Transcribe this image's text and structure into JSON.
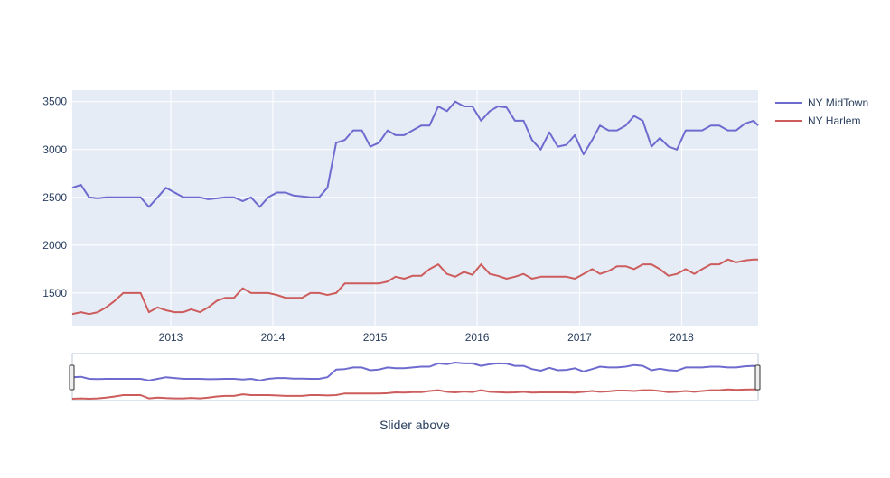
{
  "chart_data": {
    "type": "line",
    "x_axis": {
      "type": "date",
      "range": [
        "2012-01-15",
        "2018-10-01"
      ],
      "tick_labels": [
        "2013",
        "2014",
        "2015",
        "2016",
        "2017",
        "2018"
      ]
    },
    "y_axis": {
      "range": [
        1150,
        3620
      ],
      "tick_values": [
        1500,
        2000,
        2500,
        3000,
        3500
      ],
      "tick_labels": [
        "1500",
        "2000",
        "2500",
        "3000",
        "3500"
      ]
    },
    "grid": true,
    "legend_position": "top-right",
    "xlabel": "Slider above",
    "range_slider": true,
    "series": [
      {
        "name": "NY MidTown",
        "color": "#6e6bcf",
        "x": [
          "2012-01-15",
          "2012-02-15",
          "2012-03-15",
          "2012-04-15",
          "2012-05-15",
          "2012-06-15",
          "2012-07-15",
          "2012-08-15",
          "2012-09-15",
          "2012-10-15",
          "2012-11-15",
          "2012-12-15",
          "2013-01-15",
          "2013-02-15",
          "2013-03-15",
          "2013-04-15",
          "2013-05-15",
          "2013-06-15",
          "2013-07-15",
          "2013-08-15",
          "2013-09-15",
          "2013-10-15",
          "2013-11-15",
          "2013-12-15",
          "2014-01-15",
          "2014-02-15",
          "2014-03-15",
          "2014-04-15",
          "2014-05-15",
          "2014-06-15",
          "2014-07-15",
          "2014-08-15",
          "2014-09-15",
          "2014-10-15",
          "2014-11-15",
          "2014-12-15",
          "2015-01-15",
          "2015-02-15",
          "2015-03-15",
          "2015-04-15",
          "2015-05-15",
          "2015-06-15",
          "2015-07-15",
          "2015-08-15",
          "2015-09-15",
          "2015-10-15",
          "2015-11-15",
          "2015-12-15",
          "2016-01-15",
          "2016-02-15",
          "2016-03-15",
          "2016-04-15",
          "2016-05-15",
          "2016-06-15",
          "2016-07-15",
          "2016-08-15",
          "2016-09-15",
          "2016-10-15",
          "2016-11-15",
          "2016-12-15",
          "2017-01-15",
          "2017-02-15",
          "2017-03-15",
          "2017-04-15",
          "2017-05-15",
          "2017-06-15",
          "2017-07-15",
          "2017-08-15",
          "2017-09-15",
          "2017-10-15",
          "2017-11-15",
          "2017-12-15",
          "2018-01-15",
          "2018-02-15",
          "2018-03-15",
          "2018-04-15",
          "2018-05-15",
          "2018-06-15",
          "2018-07-15",
          "2018-08-15",
          "2018-09-15",
          "2018-10-01"
        ],
        "y": [
          2600,
          2630,
          2500,
          2490,
          2500,
          2500,
          2500,
          2500,
          2500,
          2400,
          2500,
          2600,
          2550,
          2500,
          2500,
          2500,
          2480,
          2490,
          2500,
          2500,
          2460,
          2500,
          2400,
          2500,
          2550,
          2550,
          2520,
          2510,
          2500,
          2500,
          2600,
          3070,
          3100,
          3200,
          3200,
          3030,
          3070,
          3200,
          3150,
          3150,
          3200,
          3250,
          3250,
          3450,
          3400,
          3500,
          3450,
          3450,
          3300,
          3400,
          3450,
          3440,
          3300,
          3300,
          3100,
          3000,
          3180,
          3030,
          3050,
          3150,
          2950,
          3100,
          3250,
          3200,
          3200,
          3250,
          3350,
          3300,
          3030,
          3120,
          3030,
          3000,
          3200,
          3200,
          3200,
          3250,
          3250,
          3200,
          3200,
          3270,
          3300,
          3250
        ]
      },
      {
        "name": "NY Harlem",
        "color": "#cd5c5c",
        "x": [
          "2012-01-15",
          "2012-02-15",
          "2012-03-15",
          "2012-04-15",
          "2012-05-15",
          "2012-06-15",
          "2012-07-15",
          "2012-08-15",
          "2012-09-15",
          "2012-10-15",
          "2012-11-15",
          "2012-12-15",
          "2013-01-15",
          "2013-02-15",
          "2013-03-15",
          "2013-04-15",
          "2013-05-15",
          "2013-06-15",
          "2013-07-15",
          "2013-08-15",
          "2013-09-15",
          "2013-10-15",
          "2013-11-15",
          "2013-12-15",
          "2014-01-15",
          "2014-02-15",
          "2014-03-15",
          "2014-04-15",
          "2014-05-15",
          "2014-06-15",
          "2014-07-15",
          "2014-08-15",
          "2014-09-15",
          "2014-10-15",
          "2014-11-15",
          "2014-12-15",
          "2015-01-15",
          "2015-02-15",
          "2015-03-15",
          "2015-04-15",
          "2015-05-15",
          "2015-06-15",
          "2015-07-15",
          "2015-08-15",
          "2015-09-15",
          "2015-10-15",
          "2015-11-15",
          "2015-12-15",
          "2016-01-15",
          "2016-02-15",
          "2016-03-15",
          "2016-04-15",
          "2016-05-15",
          "2016-06-15",
          "2016-07-15",
          "2016-08-15",
          "2016-09-15",
          "2016-10-15",
          "2016-11-15",
          "2016-12-15",
          "2017-01-15",
          "2017-02-15",
          "2017-03-15",
          "2017-04-15",
          "2017-05-15",
          "2017-06-15",
          "2017-07-15",
          "2017-08-15",
          "2017-09-15",
          "2017-10-15",
          "2017-11-15",
          "2017-12-15",
          "2018-01-15",
          "2018-02-15",
          "2018-03-15",
          "2018-04-15",
          "2018-05-15",
          "2018-06-15",
          "2018-07-15",
          "2018-08-15",
          "2018-09-15",
          "2018-10-01"
        ],
        "y": [
          1280,
          1300,
          1280,
          1300,
          1350,
          1420,
          1500,
          1500,
          1500,
          1300,
          1350,
          1320,
          1300,
          1300,
          1330,
          1300,
          1350,
          1420,
          1450,
          1450,
          1550,
          1500,
          1500,
          1500,
          1480,
          1450,
          1450,
          1450,
          1500,
          1500,
          1480,
          1500,
          1600,
          1600,
          1600,
          1600,
          1600,
          1620,
          1670,
          1650,
          1680,
          1680,
          1750,
          1800,
          1700,
          1670,
          1720,
          1690,
          1800,
          1700,
          1680,
          1650,
          1670,
          1700,
          1650,
          1670,
          1670,
          1670,
          1670,
          1650,
          1700,
          1750,
          1700,
          1730,
          1780,
          1780,
          1750,
          1800,
          1800,
          1750,
          1680,
          1700,
          1750,
          1700,
          1750,
          1800,
          1800,
          1850,
          1820,
          1840,
          1850,
          1850
        ]
      }
    ]
  }
}
